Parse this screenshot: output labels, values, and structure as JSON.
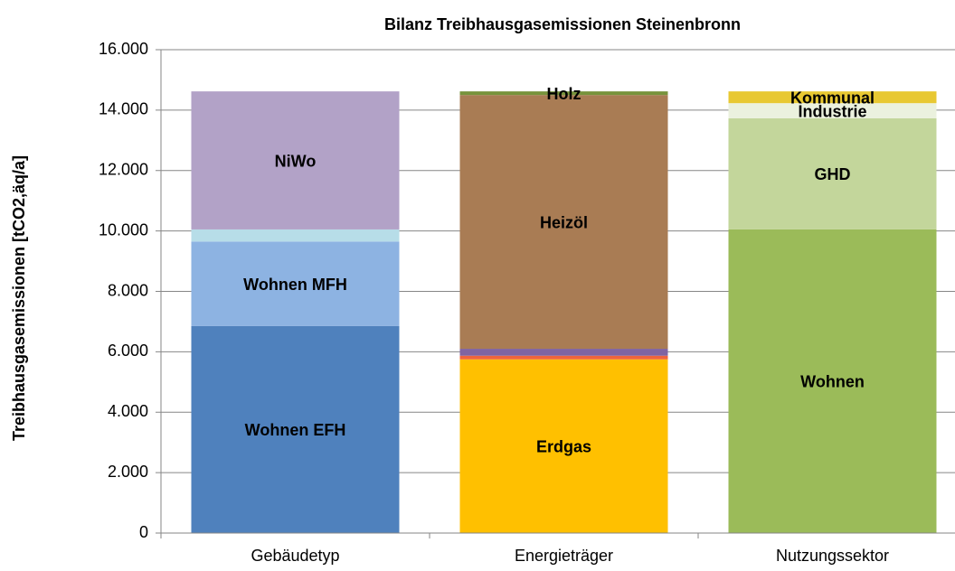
{
  "chart_data": {
    "type": "stacked_bar",
    "title": "Bilanz Treibhausgasemissionen Steinenbronn",
    "y_label": "Treibhausgasemissionen [tCO2,äq/a]",
    "categories": [
      "Gebäudetyp",
      "Energieträger",
      "Nutzungssektor"
    ],
    "series": [
      {
        "name": "Wohnen EFH",
        "color": "#4f81bd",
        "values": [
          6850,
          null,
          null
        ]
      },
      {
        "name": "Wohnen MFH",
        "color": "#8db3e2",
        "values": [
          2800,
          null,
          null
        ]
      },
      {
        "name": null,
        "color": "#b7dde8",
        "values": [
          400,
          null,
          null
        ]
      },
      {
        "name": "NiWo",
        "color": "#b2a2c7",
        "values": [
          4570,
          null,
          null
        ]
      },
      {
        "name": "Erdgas",
        "color": "#ffc000",
        "values": [
          null,
          5750,
          null
        ]
      },
      {
        "name": null,
        "color": "#f0643c",
        "values": [
          null,
          120,
          null
        ]
      },
      {
        "name": null,
        "color": "#8064a2",
        "values": [
          null,
          230,
          null
        ]
      },
      {
        "name": "Heizöl",
        "color": "#a97c54",
        "values": [
          null,
          8400,
          null
        ]
      },
      {
        "name": "Holz",
        "color": "#77933c",
        "values": [
          null,
          120,
          null
        ]
      },
      {
        "name": "Wohnen",
        "color": "#9bbb59",
        "values": [
          null,
          null,
          10050
        ]
      },
      {
        "name": "GHD",
        "color": "#c3d69b",
        "values": [
          null,
          null,
          3680
        ]
      },
      {
        "name": "Industrie",
        "color": "#ebf1de",
        "values": [
          null,
          null,
          500
        ]
      },
      {
        "name": "Kommunal",
        "color": "#e8c832",
        "values": [
          null,
          null,
          390
        ]
      }
    ],
    "ylim": [
      0,
      16000
    ],
    "yticks": [
      0,
      {
        "value": 2000,
        "label": "2.000"
      },
      {
        "value": 4000,
        "label": "4.000"
      },
      {
        "value": 6000,
        "label": "6.000"
      },
      {
        "value": 8000,
        "label": "8.000"
      },
      {
        "value": 10000,
        "label": "10.000"
      },
      {
        "value": 12000,
        "label": "12.000"
      },
      {
        "value": 14000,
        "label": "14.000"
      },
      {
        "value": 16000,
        "label": "16.000"
      }
    ],
    "grid": true
  }
}
